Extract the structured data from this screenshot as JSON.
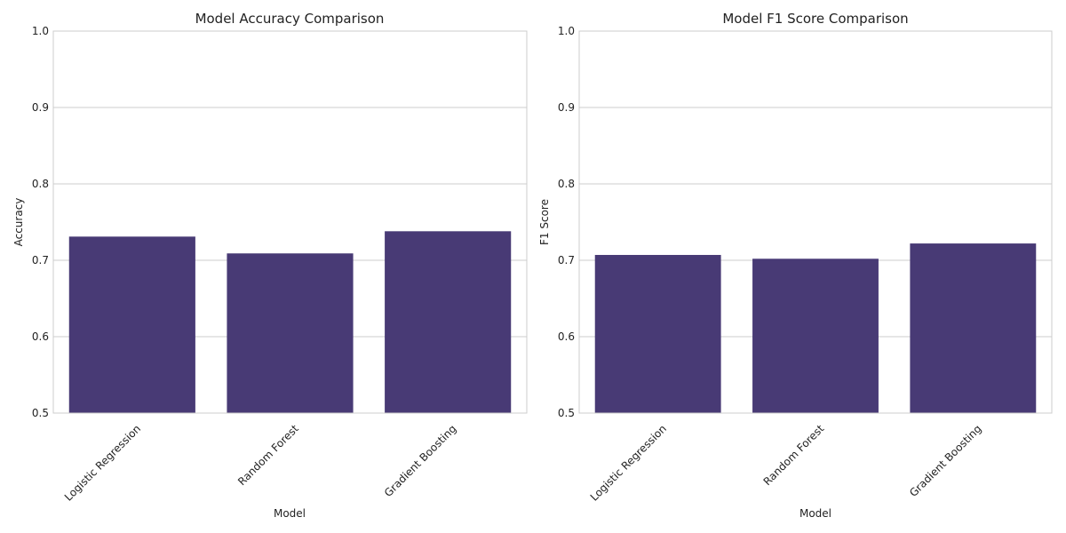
{
  "chart_data": [
    {
      "type": "bar",
      "title": "Model Accuracy Comparison",
      "xlabel": "Model",
      "ylabel": "Accuracy",
      "categories": [
        "Logistic Regression",
        "Random Forest",
        "Gradient Boosting"
      ],
      "values": [
        0.731,
        0.709,
        0.738
      ],
      "ylim": [
        0.5,
        1.0
      ],
      "yticks": [
        "0.5",
        "0.6",
        "0.7",
        "0.8",
        "0.9",
        "1.0"
      ],
      "grid": "horizontal",
      "bar_color": "#483a75"
    },
    {
      "type": "bar",
      "title": "Model F1 Score Comparison",
      "xlabel": "Model",
      "ylabel": "F1 Score",
      "categories": [
        "Logistic Regression",
        "Random Forest",
        "Gradient Boosting"
      ],
      "values": [
        0.707,
        0.702,
        0.722
      ],
      "ylim": [
        0.5,
        1.0
      ],
      "yticks": [
        "0.5",
        "0.6",
        "0.7",
        "0.8",
        "0.9",
        "1.0"
      ],
      "grid": "horizontal",
      "bar_color": "#483a75"
    }
  ]
}
